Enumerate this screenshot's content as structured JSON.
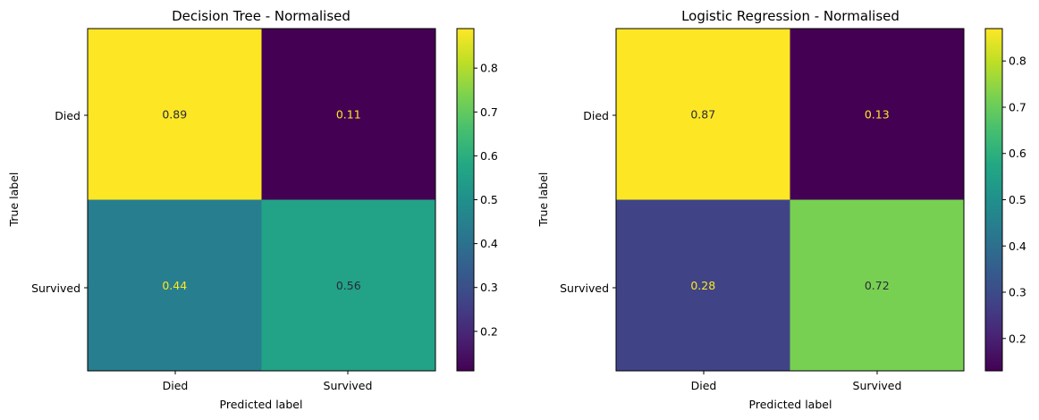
{
  "chart_data": [
    {
      "type": "heatmap",
      "title": "Decision Tree - Normalised",
      "xlabel": "Predicted label",
      "ylabel": "True label",
      "x_categories": [
        "Died",
        "Survived"
      ],
      "y_categories": [
        "Died",
        "Survived"
      ],
      "values": [
        [
          0.89,
          0.11
        ],
        [
          0.44,
          0.56
        ]
      ],
      "colormap": "viridis",
      "colorbar": {
        "min": 0.11,
        "max": 0.89,
        "ticks": [
          0.2,
          0.3,
          0.4,
          0.5,
          0.6,
          0.7,
          0.8
        ],
        "tick_labels": [
          "0.2",
          "0.3",
          "0.4",
          "0.5",
          "0.6",
          "0.7",
          "0.8"
        ]
      }
    },
    {
      "type": "heatmap",
      "title": "Logistic Regression - Normalised",
      "xlabel": "Predicted label",
      "ylabel": "True label",
      "x_categories": [
        "Died",
        "Survived"
      ],
      "y_categories": [
        "Died",
        "Survived"
      ],
      "values": [
        [
          0.87,
          0.13
        ],
        [
          0.28,
          0.72
        ]
      ],
      "colormap": "viridis",
      "colorbar": {
        "min": 0.13,
        "max": 0.87,
        "ticks": [
          0.2,
          0.3,
          0.4,
          0.5,
          0.6,
          0.7,
          0.8
        ],
        "tick_labels": [
          "0.2",
          "0.3",
          "0.4",
          "0.5",
          "0.6",
          "0.7",
          "0.8"
        ]
      }
    }
  ]
}
